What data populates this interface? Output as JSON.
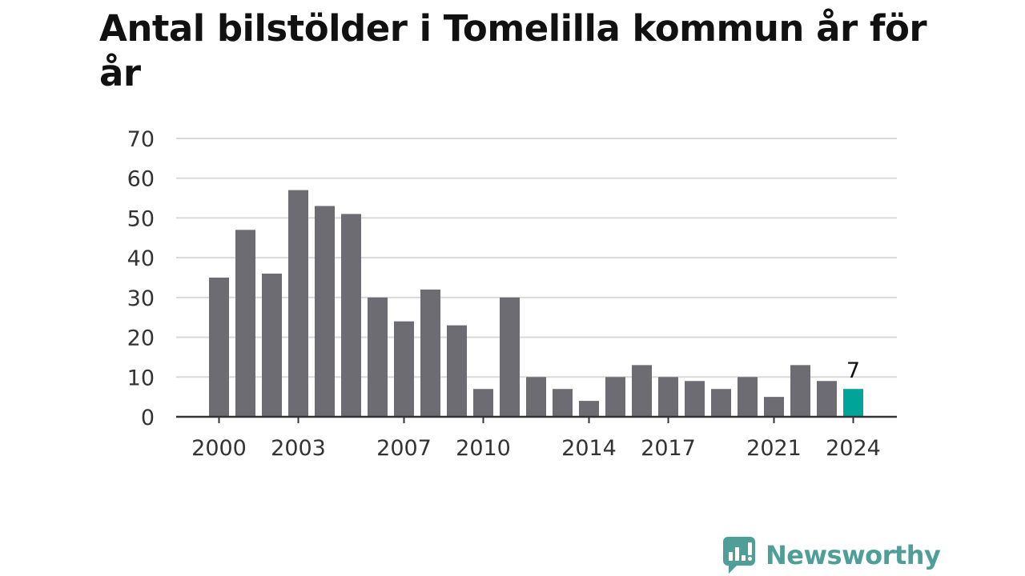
{
  "title": "Antal bilstölder i Tomelilla kommun år för år",
  "brand": {
    "name": "Newsworthy",
    "icon": "newsworthy-logo-icon"
  },
  "colors": {
    "bar": "#6d6c72",
    "highlight": "#00a499",
    "grid": "#d9d9d9",
    "axis": "#333333",
    "brand": "#4f9e98"
  },
  "chart_data": {
    "type": "bar",
    "title": "Antal bilstölder i Tomelilla kommun år för år",
    "xlabel": "",
    "ylabel": "",
    "categories": [
      2000,
      2001,
      2002,
      2003,
      2004,
      2005,
      2006,
      2007,
      2008,
      2009,
      2010,
      2011,
      2012,
      2013,
      2014,
      2015,
      2016,
      2017,
      2018,
      2019,
      2020,
      2021,
      2022,
      2023,
      2024
    ],
    "values": [
      35,
      47,
      36,
      57,
      53,
      51,
      30,
      24,
      32,
      23,
      7,
      30,
      10,
      7,
      4,
      10,
      13,
      10,
      9,
      7,
      10,
      5,
      13,
      9,
      7
    ],
    "ylim": [
      0,
      70
    ],
    "yticks": [
      0,
      10,
      20,
      30,
      40,
      50,
      60,
      70
    ],
    "xticks": [
      2000,
      2003,
      2007,
      2010,
      2014,
      2017,
      2021,
      2024
    ],
    "highlight": {
      "category": 2024,
      "label": "7"
    },
    "grid": true,
    "legend": "none"
  }
}
